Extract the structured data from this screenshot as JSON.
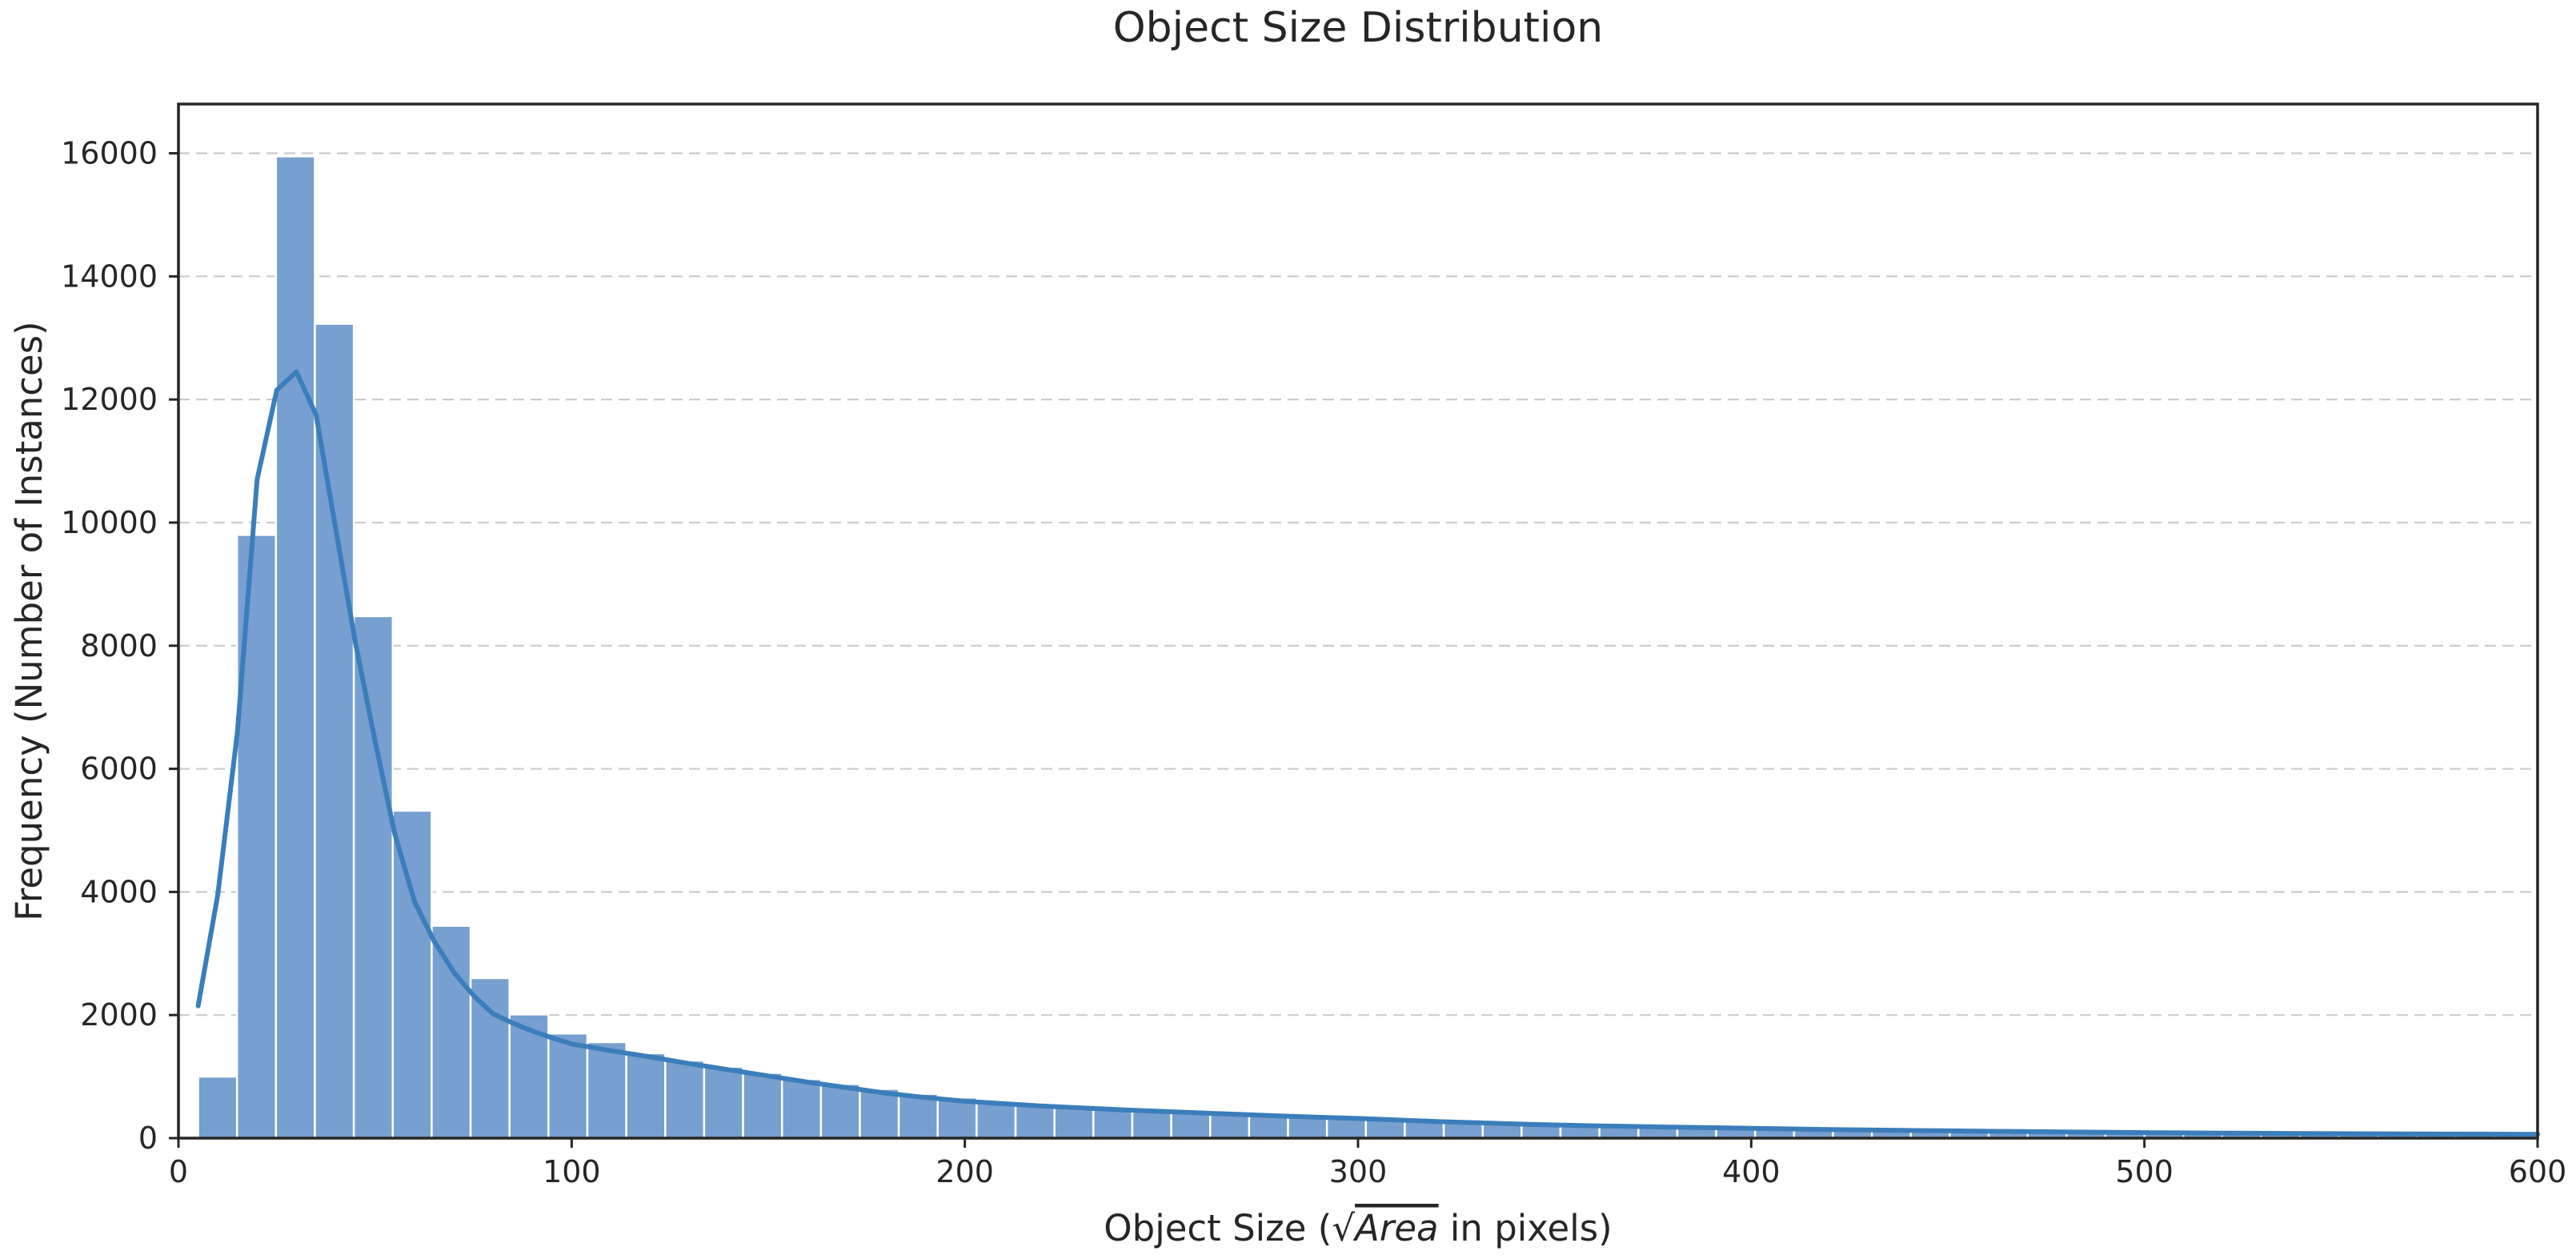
{
  "chart_data": {
    "type": "bar",
    "title": "Object Size Distribution",
    "xlabel_parts": {
      "prefix": "Object Size (",
      "sqrt": "√",
      "area": "Area",
      "suffix": " in pixels)"
    },
    "ylabel": "Frequency (Number of Instances)",
    "xlim": [
      0,
      600
    ],
    "ylim": [
      0,
      16800
    ],
    "x_ticks": [
      0,
      100,
      200,
      300,
      400,
      500,
      600
    ],
    "y_ticks": [
      0,
      2000,
      4000,
      6000,
      8000,
      10000,
      12000,
      14000,
      16000
    ],
    "grid": "horizontal-dashed",
    "bar_color": "#779fcf",
    "line_color": "#3a7ebb",
    "bins": {
      "start": 5,
      "width": 9.9,
      "values": [
        1000,
        9800,
        15950,
        13230,
        8480,
        5320,
        3450,
        2600,
        2010,
        1700,
        1560,
        1380,
        1260,
        1160,
        1060,
        960,
        880,
        800,
        720,
        660,
        600,
        550,
        520,
        490,
        460,
        430,
        410,
        390,
        370,
        350,
        330,
        300,
        280,
        260,
        240,
        225,
        210,
        200,
        190,
        180,
        170,
        160,
        150,
        145,
        140,
        135,
        130,
        125,
        120,
        115,
        110,
        105,
        100,
        95,
        92,
        90,
        88,
        86,
        84,
        82
      ]
    },
    "kde": {
      "x": [
        5,
        10,
        15,
        20,
        25,
        30,
        35,
        40,
        45,
        50,
        55,
        60,
        65,
        70,
        75,
        80,
        85,
        90,
        95,
        100,
        110,
        120,
        130,
        140,
        150,
        160,
        170,
        180,
        190,
        200,
        220,
        240,
        260,
        280,
        300,
        320,
        340,
        360,
        380,
        400,
        420,
        440,
        460,
        480,
        500,
        520,
        540,
        560,
        580,
        600
      ],
      "y": [
        2150,
        3950,
        6600,
        10700,
        12150,
        12450,
        11750,
        9900,
        8050,
        6450,
        4950,
        3850,
        3200,
        2700,
        2320,
        2020,
        1870,
        1740,
        1630,
        1530,
        1420,
        1320,
        1210,
        1110,
        1010,
        910,
        820,
        730,
        660,
        600,
        520,
        460,
        410,
        360,
        320,
        270,
        230,
        200,
        180,
        160,
        140,
        125,
        112,
        100,
        90,
        82,
        76,
        70,
        66,
        62
      ]
    }
  }
}
